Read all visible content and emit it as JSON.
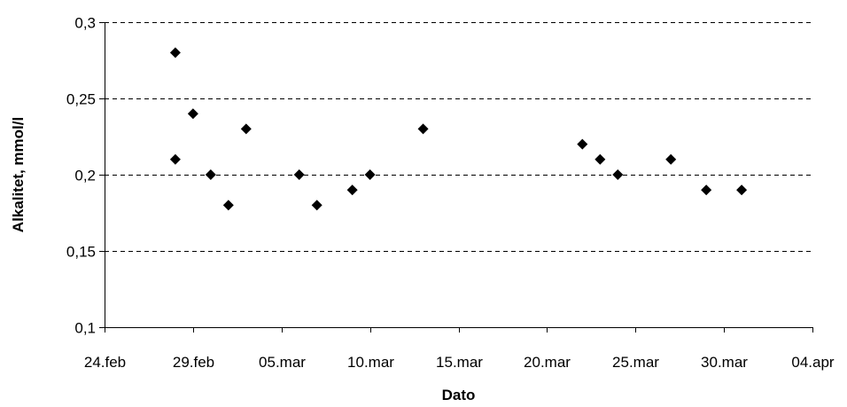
{
  "chart_data": {
    "type": "scatter",
    "title": "",
    "xlabel": "Dato",
    "ylabel": "Alkalitet, mmol/l",
    "x_tick_labels": [
      "24.feb",
      "29.feb",
      "05.mar",
      "10.mar",
      "15.mar",
      "20.mar",
      "25.mar",
      "30.mar",
      "04.apr"
    ],
    "y_tick_labels": [
      "0,1",
      "0,15",
      "0,2",
      "0,25",
      "0,3"
    ],
    "x_range": [
      "24.feb",
      "04.apr"
    ],
    "ylim": [
      0.1,
      0.3
    ],
    "y_ticks": [
      0.1,
      0.15,
      0.2,
      0.25,
      0.3
    ],
    "grid": "horizontal dashed",
    "legend": "none",
    "marker": "diamond",
    "marker_color": "#000000",
    "points": [
      {
        "x": "28.feb",
        "y": 0.28
      },
      {
        "x": "28.feb",
        "y": 0.21
      },
      {
        "x": "29.feb",
        "y": 0.24
      },
      {
        "x": "01.mar",
        "y": 0.2
      },
      {
        "x": "02.mar",
        "y": 0.18
      },
      {
        "x": "03.mar",
        "y": 0.23
      },
      {
        "x": "06.mar",
        "y": 0.2
      },
      {
        "x": "07.mar",
        "y": 0.18
      },
      {
        "x": "09.mar",
        "y": 0.19
      },
      {
        "x": "10.mar",
        "y": 0.2
      },
      {
        "x": "13.mar",
        "y": 0.23
      },
      {
        "x": "22.mar",
        "y": 0.22
      },
      {
        "x": "23.mar",
        "y": 0.21
      },
      {
        "x": "24.mar",
        "y": 0.2
      },
      {
        "x": "27.mar",
        "y": 0.21
      },
      {
        "x": "29.mar",
        "y": 0.19
      },
      {
        "x": "31.mar",
        "y": 0.19
      }
    ]
  }
}
